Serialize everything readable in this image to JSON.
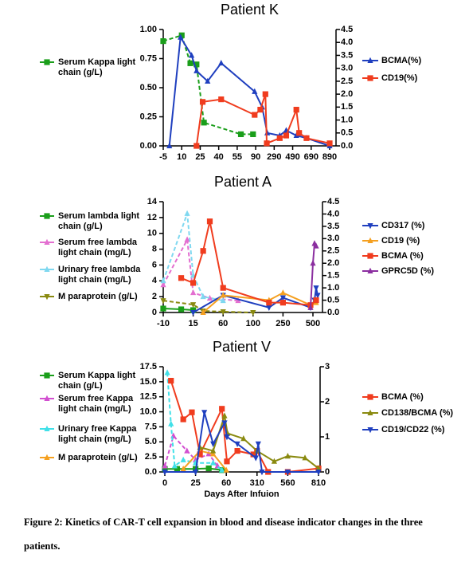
{
  "chart_data": [
    {
      "type": "line",
      "title": "Patient K",
      "xlim": [
        -5,
        920
      ],
      "xticks": [
        -5,
        10,
        25,
        40,
        55,
        90,
        290,
        490,
        690,
        890
      ],
      "ylim": [
        0,
        1
      ],
      "yticks": [
        {
          "value": 0,
          "label": "0.00"
        },
        0.25,
        {
          "value": 0.5,
          "label": "0.50"
        },
        0.75,
        {
          "value": 1,
          "label": "1.00"
        }
      ],
      "y2lim": [
        0,
        4.5
      ],
      "y2ticks": [
        {
          "value": 0,
          "label": "0.0"
        },
        0.5,
        {
          "value": 1,
          "label": "1.0"
        },
        1.5,
        {
          "value": 2,
          "label": "2.0"
        },
        2.5,
        {
          "value": 3,
          "label": "3.0"
        },
        3.5,
        {
          "value": 4,
          "label": "4.0"
        },
        4.5
      ],
      "series": [
        {
          "name": "Serum Kappa light chain (g/L)",
          "color": "#1a9e1a",
          "marker": "square",
          "dashed": true,
          "x": [
            -5,
            10,
            17,
            22,
            28,
            62,
            85
          ],
          "values": [
            0.9,
            0.95,
            0.71,
            0.7,
            0.2,
            0.1,
            0.1
          ]
        },
        {
          "name": "BCMA(%)",
          "color": "#1f3fbf",
          "marker": "triangle-up",
          "dashed": false,
          "axis": "y2",
          "x": [
            0,
            9,
            18,
            22,
            31,
            42,
            88,
            160,
            215,
            350,
            420,
            530,
            640,
            890
          ],
          "values": [
            0,
            4.2,
            3.5,
            2.9,
            2.5,
            3.2,
            2.1,
            1.5,
            0.5,
            0.4,
            0.6,
            0.4,
            0.3,
            0
          ]
        },
        {
          "name": "CD19(%)",
          "color": "#f03c1e",
          "marker": "square",
          "dashed": false,
          "axis": "y2",
          "x": [
            22,
            27,
            42,
            88,
            140,
            195,
            210,
            350,
            420,
            530,
            560,
            640,
            890
          ],
          "values": [
            0,
            1.7,
            1.8,
            1.2,
            1.4,
            2.0,
            0.1,
            0.3,
            0.4,
            1.4,
            0.5,
            0.3,
            0.1
          ]
        }
      ]
    },
    {
      "type": "line",
      "title": "Patient A",
      "xlim": [
        -10,
        530
      ],
      "xticks": [
        -10,
        15,
        60,
        100,
        250,
        500
      ],
      "ylim": [
        0,
        14
      ],
      "yticks": [
        0,
        2,
        4,
        6,
        8,
        10,
        12,
        14
      ],
      "y2lim": [
        0,
        4.5
      ],
      "y2ticks": [
        {
          "value": 0,
          "label": "0.0"
        },
        0.5,
        {
          "value": 1,
          "label": "1.0"
        },
        1.5,
        {
          "value": 2,
          "label": "2.0"
        },
        2.5,
        {
          "value": 3,
          "label": "3.0"
        },
        3.5,
        {
          "value": 4,
          "label": "4.0"
        },
        4.5
      ],
      "series": [
        {
          "name": "Serum lambda light chain (g/L)",
          "color": "#1a9e1a",
          "marker": "square",
          "dashed": false,
          "x": [
            -10,
            5,
            15
          ],
          "values": [
            0.5,
            0.4,
            0.3
          ]
        },
        {
          "name": "Serum free lambda light chain (mg/L)",
          "color": "#e36fd0",
          "marker": "triangle-up",
          "dashed": true,
          "x": [
            -10,
            10,
            15,
            40,
            80
          ],
          "values": [
            3.5,
            9.2,
            2.5,
            1.8,
            1.5
          ]
        },
        {
          "name": "Urinary free lambda light chain (mg/L)",
          "color": "#7fd8f0",
          "marker": "triangle-up",
          "dashed": true,
          "x": [
            -10,
            10,
            15,
            30,
            60
          ],
          "values": [
            4,
            12.5,
            4.7,
            2,
            1.5
          ]
        },
        {
          "name": "M paraprotein (g/L)",
          "color": "#8a8a10",
          "marker": "triangle-down",
          "dashed": true,
          "x": [
            -10,
            15,
            30,
            60,
            100
          ],
          "values": [
            1.5,
            1,
            0.2,
            0.1,
            0
          ]
        },
        {
          "name": "CD317 (%)",
          "color": "#1f3fbf",
          "marker": "triangle-down",
          "dashed": false,
          "axis": "y2",
          "x": [
            15,
            60,
            180,
            250,
            480,
            505,
            510,
            515
          ],
          "values": [
            0,
            0.7,
            0.2,
            0.6,
            0.2,
            0.5,
            1.0,
            0.7
          ]
        },
        {
          "name": "CD19 (%)",
          "color": "#f5a020",
          "marker": "triangle-up",
          "dashed": false,
          "axis": "y2",
          "x": [
            30,
            60,
            180,
            250,
            480,
            510
          ],
          "values": [
            0,
            0.7,
            0.5,
            0.8,
            0.3,
            0.4
          ]
        },
        {
          "name": "BCMA (%)",
          "color": "#f03c1e",
          "marker": "square",
          "dashed": false,
          "axis": "y2",
          "x": [
            5,
            15,
            30,
            40,
            60,
            180,
            250,
            480,
            510
          ],
          "values": [
            1.4,
            1.2,
            2.5,
            3.7,
            1.0,
            0.4,
            0.4,
            0.3,
            0.5
          ]
        },
        {
          "name": "GPRC5D (%)",
          "color": "#8b2fa0",
          "marker": "triangle-up",
          "dashed": false,
          "axis": "y2",
          "x": [
            480,
            500,
            505,
            510
          ],
          "values": [
            0.2,
            2.0,
            2.8,
            2.7
          ]
        }
      ]
    },
    {
      "type": "line",
      "title": "Patient V",
      "xlabel": "Days After Infuion",
      "xlim": [
        -5,
        830
      ],
      "xticks": [
        0,
        25,
        60,
        310,
        560,
        810
      ],
      "ylim": [
        0,
        17.5
      ],
      "yticks": [
        {
          "value": 0,
          "label": "0.0"
        },
        2.5,
        {
          "value": 5,
          "label": "5.0"
        },
        7.5,
        {
          "value": 10,
          "label": "10.0"
        },
        12.5,
        {
          "value": 15,
          "label": "15.0"
        },
        17.5
      ],
      "y2lim": [
        0,
        3
      ],
      "y2ticks": [
        0,
        1,
        2,
        3
      ],
      "series": [
        {
          "name": "Serum Kappa light chain (g/L)",
          "color": "#1a9e1a",
          "marker": "square",
          "dashed": false,
          "x": [
            0,
            10,
            25,
            40,
            55
          ],
          "values": [
            0.5,
            0.5,
            0.5,
            0.6,
            0.3
          ]
        },
        {
          "name": "Serum free Kappa light chain (mg/L)",
          "color": "#d24fd0",
          "marker": "triangle-up",
          "dashed": true,
          "x": [
            0,
            7,
            18,
            25,
            40,
            50
          ],
          "values": [
            1,
            6,
            3.5,
            2,
            3,
            1
          ]
        },
        {
          "name": "Urinary free Kappa light chain (mg/L)",
          "color": "#40e0e8",
          "marker": "triangle-up",
          "dashed": true,
          "x": [
            2,
            5,
            8,
            15,
            25,
            45,
            55
          ],
          "values": [
            16.5,
            8,
            1,
            2,
            1.5,
            1.5,
            0.3
          ]
        },
        {
          "name": "M paraprotein (g/L)",
          "color": "#f5a020",
          "marker": "triangle-up",
          "dashed": false,
          "x": [
            15,
            30,
            45,
            60
          ],
          "values": [
            0.5,
            3.5,
            3,
            0.3
          ]
        },
        {
          "name": "BCMA (%)",
          "color": "#f03c1e",
          "marker": "square",
          "dashed": false,
          "axis": "y2",
          "x": [
            5,
            15,
            22,
            30,
            55,
            65,
            150,
            280,
            310,
            400,
            560,
            810
          ],
          "values": [
            2.6,
            1.5,
            1.7,
            0.5,
            1.8,
            0.3,
            0.6,
            0.5,
            0.6,
            0,
            0,
            0.1
          ]
        },
        {
          "name": "CD138/BCMA (%)",
          "color": "#8a8a10",
          "marker": "triangle-up",
          "dashed": false,
          "axis": "y2",
          "x": [
            30,
            45,
            58,
            70,
            200,
            310,
            450,
            560,
            700,
            810
          ],
          "values": [
            0.7,
            0.6,
            1.6,
            1.1,
            0.95,
            0.6,
            0.3,
            0.45,
            0.4,
            0.1
          ]
        },
        {
          "name": "CD19/CD22 (%)",
          "color": "#1f3fbf",
          "marker": "triangle-down",
          "dashed": false,
          "axis": "y2",
          "x": [
            0,
            25,
            35,
            45,
            58,
            65,
            150,
            300,
            320,
            350,
            560,
            810
          ],
          "values": [
            0,
            0,
            1.7,
            0.8,
            1.4,
            1.0,
            0.8,
            0.4,
            0.8,
            0,
            0,
            0
          ]
        }
      ]
    }
  ],
  "caption": "Figure 2: Kinetics of CAR-T cell expansion in blood and disease indicator changes in the three patients."
}
